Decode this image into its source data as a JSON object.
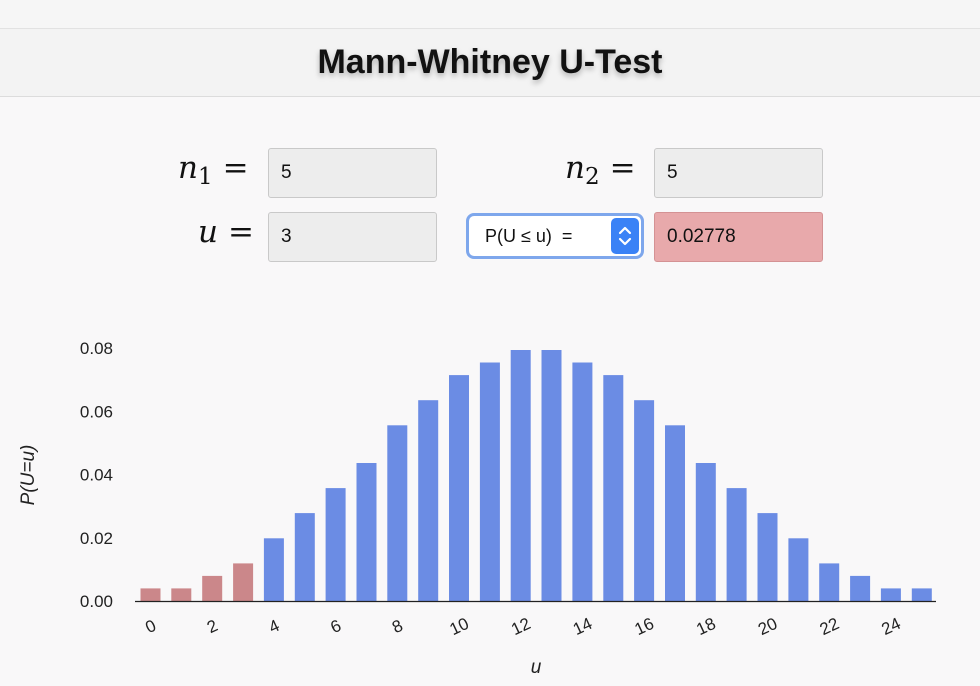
{
  "header": {
    "title": "Mann-Whitney U-Test"
  },
  "inputs": {
    "n1": {
      "symbol": "n",
      "subscript": "1",
      "equals": "=",
      "value": "5"
    },
    "n2": {
      "symbol": "n",
      "subscript": "2",
      "equals": "=",
      "value": "5"
    },
    "u": {
      "symbol": "u",
      "equals": "=",
      "value": "3"
    }
  },
  "probability_select": {
    "selected": "P(U ≤ u)  ="
  },
  "result": {
    "value": "0.02778"
  },
  "colors": {
    "bar_default": "#6b8ce4",
    "bar_highlight": "#cb878a",
    "result_bg": "#e8a9ab"
  },
  "chart_data": {
    "type": "bar",
    "x": [
      0,
      1,
      2,
      3,
      4,
      5,
      6,
      7,
      8,
      9,
      10,
      11,
      12,
      13,
      14,
      15,
      16,
      17,
      18,
      19,
      20,
      21,
      22,
      23,
      24,
      25
    ],
    "values": [
      0.00397,
      0.00397,
      0.00794,
      0.0119,
      0.01984,
      0.02778,
      0.03571,
      0.04365,
      0.05556,
      0.06349,
      0.07143,
      0.0754,
      0.07937,
      0.07937,
      0.0754,
      0.07143,
      0.06349,
      0.05556,
      0.04365,
      0.03571,
      0.02778,
      0.01984,
      0.0119,
      0.00794,
      0.00397,
      0.00397
    ],
    "highlighted_through": 3,
    "xlabel": "u",
    "ylabel": "P(U=u)",
    "xticks": [
      0,
      2,
      4,
      6,
      8,
      10,
      12,
      14,
      16,
      18,
      20,
      22,
      24
    ],
    "yticks": [
      "0.00",
      "0.02",
      "0.04",
      "0.06",
      "0.08"
    ],
    "ylim": [
      0,
      0.08
    ],
    "grid": false
  }
}
